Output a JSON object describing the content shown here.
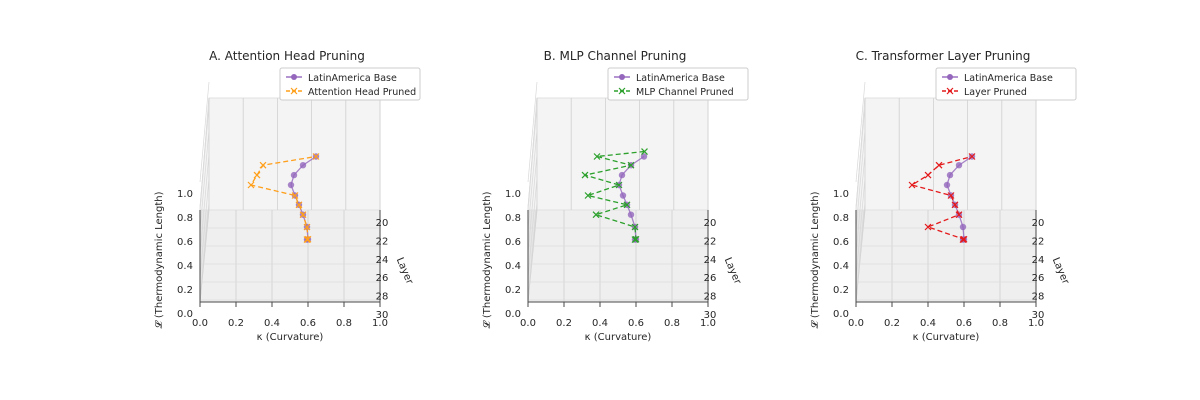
{
  "chart_data": [
    {
      "type": "3d-line",
      "title": "A. Attention Head Pruning",
      "xlabel": "κ (Curvature)",
      "ylabel": "Layer",
      "zlabel": "𝓛 (Thermodynamic Length)",
      "xlim": [
        0.0,
        1.0
      ],
      "ylim": [
        20,
        30
      ],
      "zlim": [
        0.0,
        1.0
      ],
      "x_ticks": [
        "0.0",
        "0.2",
        "0.4",
        "0.6",
        "0.8",
        "1.0"
      ],
      "y_ticks": [
        "20",
        "22",
        "24",
        "26",
        "28",
        "30"
      ],
      "z_ticks": [
        "0.0",
        "0.2",
        "0.4",
        "0.6",
        "0.8",
        "1.0"
      ],
      "legend_position": "top-right",
      "series": [
        {
          "name": "LatinAmerica Base",
          "color": "#9467bd",
          "marker": "circle",
          "linestyle": "solid",
          "points": [
            [
              0.62,
              20,
              0.84
            ],
            [
              0.62,
              21,
              0.72
            ],
            [
              0.6,
              22,
              0.8
            ],
            [
              0.55,
              23,
              0.88
            ],
            [
              0.5,
              24,
              0.92
            ],
            [
              0.45,
              25,
              0.95
            ],
            [
              0.4,
              26,
              1.0
            ],
            [
              0.42,
              27,
              1.04
            ],
            [
              0.5,
              28,
              1.08
            ],
            [
              0.62,
              29,
              1.1
            ]
          ]
        },
        {
          "name": "Attention Head Pruned",
          "color": "#ff9f1c",
          "marker": "x",
          "linestyle": "dashed",
          "points": [
            [
              0.62,
              20,
              0.84
            ],
            [
              0.62,
              21,
              0.72
            ],
            [
              0.6,
              22,
              0.8
            ],
            [
              0.55,
              23,
              0.88
            ],
            [
              0.5,
              24,
              0.92
            ],
            [
              0.45,
              25,
              0.95
            ],
            [
              0.0,
              26,
              1.0
            ],
            [
              0.05,
              27,
              1.04
            ],
            [
              0.1,
              28,
              1.08
            ],
            [
              0.62,
              29,
              1.1
            ]
          ]
        }
      ]
    },
    {
      "type": "3d-line",
      "title": "B. MLP Channel Pruning",
      "xlabel": "κ (Curvature)",
      "ylabel": "Layer",
      "zlabel": "𝓛 (Thermodynamic Length)",
      "xlim": [
        0.0,
        1.0
      ],
      "ylim": [
        20,
        30
      ],
      "zlim": [
        0.0,
        1.0
      ],
      "x_ticks": [
        "0.0",
        "0.2",
        "0.4",
        "0.6",
        "0.8",
        "1.0"
      ],
      "y_ticks": [
        "20",
        "22",
        "24",
        "26",
        "28",
        "30"
      ],
      "z_ticks": [
        "0.0",
        "0.2",
        "0.4",
        "0.6",
        "0.8",
        "1.0"
      ],
      "legend_position": "top-right",
      "series": [
        {
          "name": "LatinAmerica Base",
          "color": "#9467bd",
          "marker": "circle",
          "linestyle": "solid",
          "points": [
            [
              0.62,
              20,
              0.84
            ],
            [
              0.62,
              21,
              0.72
            ],
            [
              0.6,
              22,
              0.8
            ],
            [
              0.55,
              23,
              0.88
            ],
            [
              0.5,
              24,
              0.92
            ],
            [
              0.45,
              25,
              0.95
            ],
            [
              0.4,
              26,
              1.0
            ],
            [
              0.42,
              27,
              1.04
            ],
            [
              0.5,
              28,
              1.08
            ],
            [
              0.62,
              29,
              1.1
            ]
          ]
        },
        {
          "name": "MLP Channel Pruned",
          "color": "#2ca02c",
          "marker": "x",
          "linestyle": "dashed",
          "points": [
            [
              0.62,
              20,
              0.84
            ],
            [
              0.62,
              21,
              0.72
            ],
            [
              0.6,
              22,
              0.8
            ],
            [
              0.2,
              23,
              0.88
            ],
            [
              0.5,
              24,
              0.92
            ],
            [
              0.1,
              25,
              0.95
            ],
            [
              0.4,
              26,
              1.0
            ],
            [
              0.05,
              27,
              1.04
            ],
            [
              0.5,
              28,
              1.08
            ],
            [
              0.15,
              29,
              1.1
            ],
            [
              0.62,
              29.5,
              1.12
            ]
          ]
        }
      ]
    },
    {
      "type": "3d-line",
      "title": "C. Transformer Layer Pruning",
      "xlabel": "κ (Curvature)",
      "ylabel": "Layer",
      "zlabel": "𝓛 (Thermodynamic Length)",
      "xlim": [
        0.0,
        1.0
      ],
      "ylim": [
        20,
        30
      ],
      "zlim": [
        0.0,
        1.0
      ],
      "x_ticks": [
        "0.0",
        "0.2",
        "0.4",
        "0.6",
        "0.8",
        "1.0"
      ],
      "y_ticks": [
        "20",
        "22",
        "24",
        "26",
        "28",
        "30"
      ],
      "z_ticks": [
        "0.0",
        "0.2",
        "0.4",
        "0.6",
        "0.8",
        "1.0"
      ],
      "legend_position": "top-right",
      "series": [
        {
          "name": "LatinAmerica Base",
          "color": "#9467bd",
          "marker": "circle",
          "linestyle": "solid",
          "points": [
            [
              0.62,
              20,
              0.84
            ],
            [
              0.62,
              21,
              0.72
            ],
            [
              0.6,
              22,
              0.8
            ],
            [
              0.55,
              23,
              0.88
            ],
            [
              0.5,
              24,
              0.92
            ],
            [
              0.45,
              25,
              0.95
            ],
            [
              0.4,
              26,
              1.0
            ],
            [
              0.42,
              27,
              1.04
            ],
            [
              0.5,
              28,
              1.08
            ],
            [
              0.62,
              29,
              1.1
            ]
          ]
        },
        {
          "name": "Layer Pruned",
          "color": "#e41a1c",
          "marker": "x",
          "linestyle": "dashed",
          "points": [
            [
              0.62,
              20,
              0.84
            ],
            [
              0.62,
              21,
              0.72
            ],
            [
              0.25,
              22,
              0.8
            ],
            [
              0.55,
              23,
              0.88
            ],
            [
              0.5,
              24,
              0.92
            ],
            [
              0.45,
              25,
              0.95
            ],
            [
              0.05,
              26,
              1.0
            ],
            [
              0.2,
              27,
              1.04
            ],
            [
              0.3,
              28,
              1.08
            ],
            [
              0.62,
              29,
              1.1
            ]
          ]
        }
      ]
    }
  ]
}
